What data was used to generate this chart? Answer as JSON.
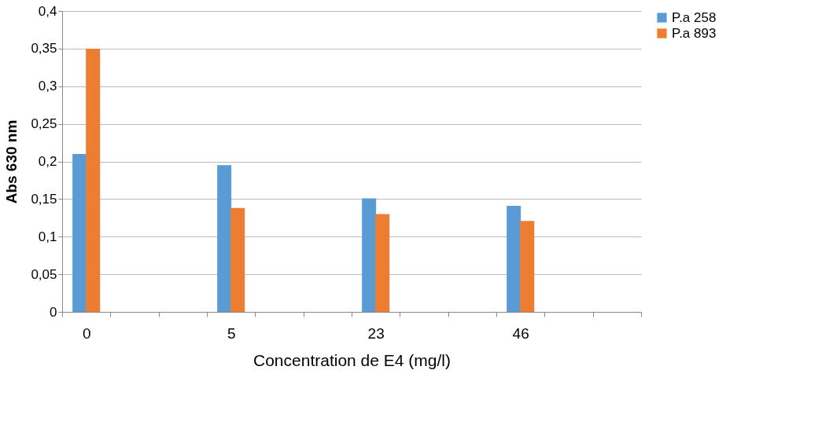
{
  "chart_data": {
    "type": "bar",
    "xlabel": "Concentration de E4 (mg/l)",
    "ylabel": "Abs 630 nm",
    "categories": [
      "0",
      null,
      null,
      "5",
      null,
      null,
      "23",
      null,
      null,
      "46",
      null,
      null
    ],
    "series": [
      {
        "name": "P.a 258",
        "color": "#5b9bd5",
        "values": [
          0.21,
          null,
          null,
          0.195,
          null,
          null,
          0.151,
          null,
          null,
          0.141,
          null,
          null
        ]
      },
      {
        "name": "P.a 893",
        "color": "#ed7d31",
        "values": [
          0.35,
          null,
          null,
          0.138,
          null,
          null,
          0.13,
          null,
          null,
          0.121,
          null,
          null
        ]
      }
    ],
    "ylim": [
      0,
      0.4
    ],
    "yticks": [
      0,
      {
        "value": 0.05,
        "label": "0,05"
      },
      {
        "value": 0.1,
        "label": "0,1"
      },
      {
        "value": 0.15,
        "label": "0,15"
      },
      {
        "value": 0.2,
        "label": "0,2"
      },
      {
        "value": 0.25,
        "label": "0,25"
      },
      {
        "value": 0.3,
        "label": "0,3"
      },
      {
        "value": 0.35,
        "label": "0,35"
      },
      {
        "value": 0.4,
        "label": "0,4"
      }
    ],
    "grid": "y",
    "legend": "right"
  }
}
